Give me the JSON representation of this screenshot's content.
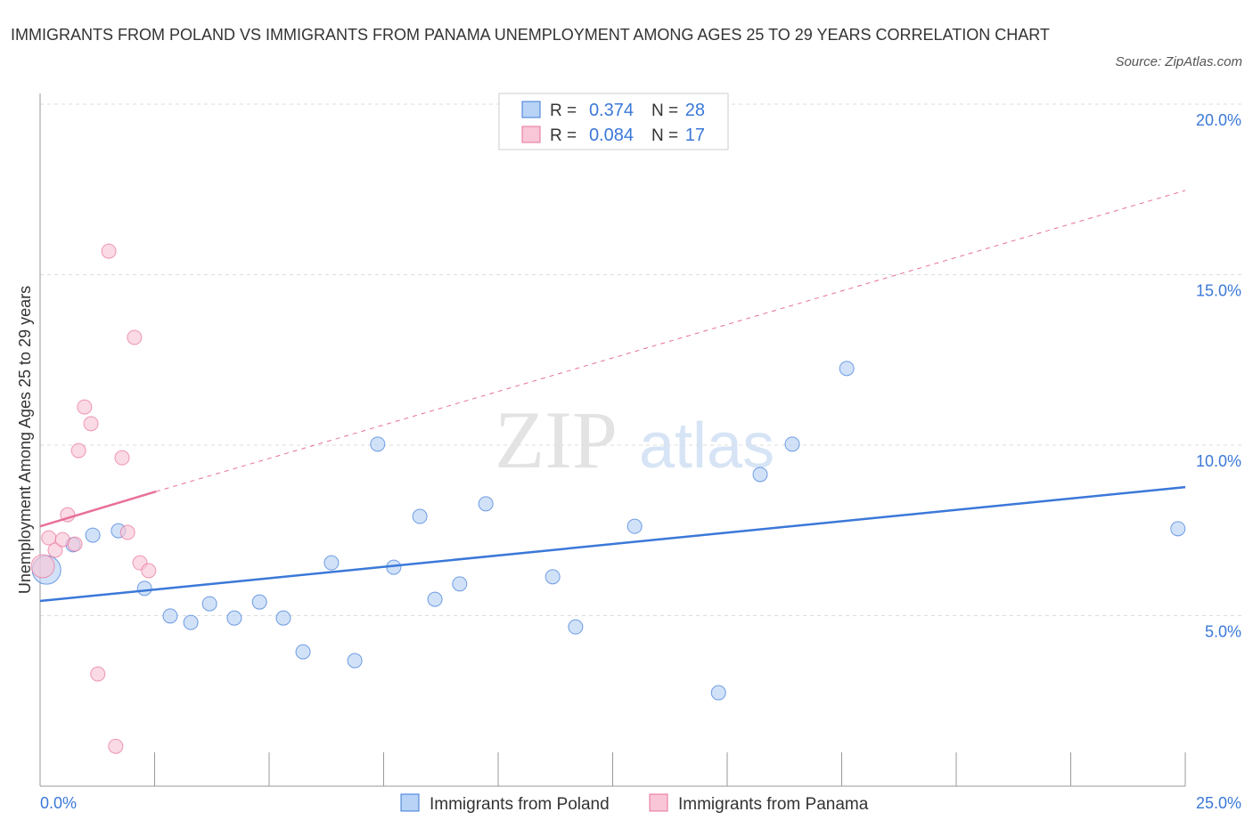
{
  "title": "IMMIGRANTS FROM POLAND VS IMMIGRANTS FROM PANAMA UNEMPLOYMENT AMONG AGES 25 TO 29 YEARS CORRELATION CHART",
  "source": "Source: ZipAtlas.com",
  "watermark": "ZIPatlas",
  "chart_data": {
    "type": "scatter",
    "title": "IMMIGRANTS FROM POLAND VS IMMIGRANTS FROM PANAMA UNEMPLOYMENT AMONG AGES 25 TO 29 YEARS CORRELATION CHART",
    "xlabel": "",
    "ylabel": "Unemployment Among Ages 25 to 29 years",
    "xlim": [
      0,
      25
    ],
    "ylim": [
      0,
      20
    ],
    "x_tick_labels": [
      "0.0%",
      "25.0%"
    ],
    "y_ticks": [
      5,
      10,
      15,
      20
    ],
    "y_tick_labels": [
      "5.0%",
      "10.0%",
      "15.0%",
      "20.0%"
    ],
    "grid": true,
    "legend_top": [
      {
        "r_label": "R = ",
        "r": "0.374",
        "n_label": "N = ",
        "n": "28"
      },
      {
        "r_label": "R = ",
        "r": "0.084",
        "n_label": "N = ",
        "n": "17"
      }
    ],
    "series": [
      {
        "name": "Immigrants from Poland",
        "color": "#3b78d8",
        "fill": "#b8d3f5",
        "points": [
          [
            0.14,
            6.34
          ],
          [
            0.72,
            7.08
          ],
          [
            1.15,
            7.36
          ],
          [
            1.71,
            7.49
          ],
          [
            2.28,
            5.8
          ],
          [
            2.84,
            4.99
          ],
          [
            3.29,
            4.8
          ],
          [
            3.7,
            5.35
          ],
          [
            4.24,
            4.93
          ],
          [
            4.79,
            5.4
          ],
          [
            5.31,
            4.93
          ],
          [
            5.74,
            3.94
          ],
          [
            6.36,
            6.55
          ],
          [
            6.87,
            3.68
          ],
          [
            7.37,
            10.03
          ],
          [
            7.72,
            6.42
          ],
          [
            8.29,
            7.91
          ],
          [
            8.62,
            5.48
          ],
          [
            9.16,
            5.93
          ],
          [
            9.73,
            8.28
          ],
          [
            11.19,
            6.14
          ],
          [
            11.69,
            4.67
          ],
          [
            12.98,
            7.62
          ],
          [
            14.81,
            2.74
          ],
          [
            15.72,
            9.14
          ],
          [
            16.42,
            10.03
          ],
          [
            17.61,
            12.25
          ],
          [
            24.84,
            7.55
          ]
        ],
        "trend": {
          "x": [
            0,
            25
          ],
          "y": [
            5.43,
            8.77
          ]
        }
      },
      {
        "name": "Immigrants from Panama",
        "color": "#e8709a",
        "fill": "#f8c6d6",
        "points": [
          [
            0.06,
            6.45
          ],
          [
            0.19,
            7.28
          ],
          [
            0.33,
            6.92
          ],
          [
            0.49,
            7.23
          ],
          [
            0.6,
            7.96
          ],
          [
            0.76,
            7.1
          ],
          [
            0.84,
            9.84
          ],
          [
            0.97,
            11.12
          ],
          [
            1.11,
            10.63
          ],
          [
            1.26,
            3.29
          ],
          [
            1.5,
            15.69
          ],
          [
            1.65,
            1.17
          ],
          [
            1.79,
            9.63
          ],
          [
            1.91,
            7.44
          ],
          [
            2.06,
            13.16
          ],
          [
            2.18,
            6.55
          ],
          [
            2.37,
            6.32
          ]
        ],
        "trend": {
          "x": [
            0,
            2.53
          ],
          "y": [
            7.62,
            8.64
          ],
          "dashed_to": {
            "x": 25,
            "y": 17.47
          }
        }
      }
    ]
  }
}
